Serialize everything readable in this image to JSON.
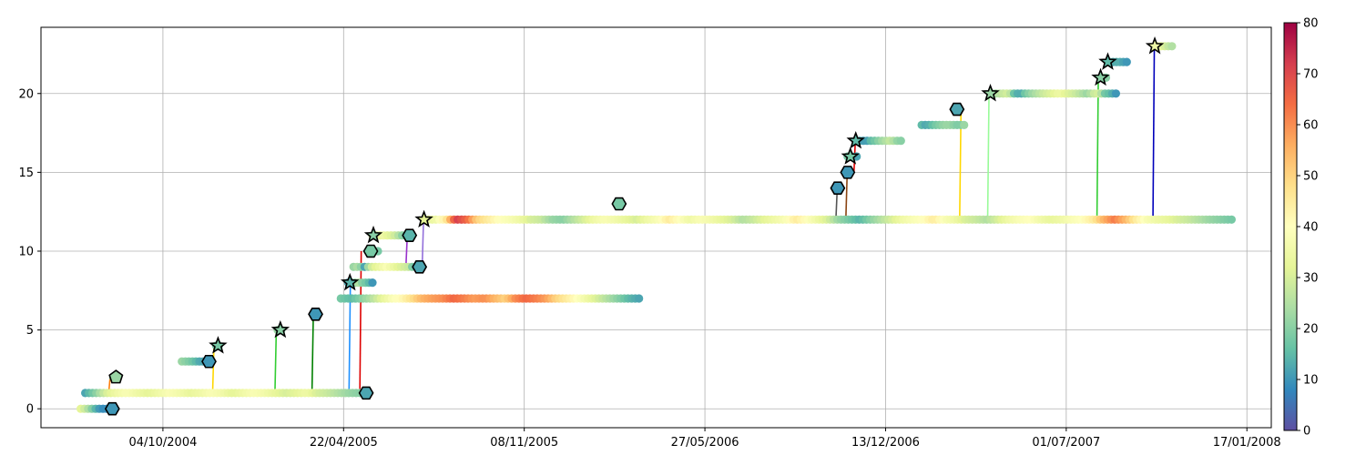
{
  "chart_data": {
    "type": "scatter",
    "title": "",
    "xlabel": "",
    "ylabel": "",
    "x_axis": {
      "kind": "date",
      "range": [
        "2004-05-22",
        "2008-02-13"
      ],
      "ticks": [
        {
          "date": "2004-10-04",
          "label": "04/10/2004"
        },
        {
          "date": "2005-04-22",
          "label": "22/04/2005"
        },
        {
          "date": "2005-11-08",
          "label": "08/11/2005"
        },
        {
          "date": "2006-05-27",
          "label": "27/05/2006"
        },
        {
          "date": "2006-12-13",
          "label": "13/12/2006"
        },
        {
          "date": "2007-07-01",
          "label": "01/07/2007"
        },
        {
          "date": "2008-01-17",
          "label": "17/01/2008"
        }
      ]
    },
    "y_axis": {
      "range": [
        -1.2,
        24.2
      ],
      "ticks": [
        0,
        5,
        10,
        15,
        20
      ],
      "tick_labels": [
        "0",
        "5",
        "10",
        "15",
        "20"
      ]
    },
    "grid": true,
    "colorbar": {
      "colormap": "Spectral_r",
      "range": [
        0,
        80
      ],
      "ticks": [
        0,
        10,
        20,
        30,
        40,
        50,
        60,
        70,
        80
      ],
      "tick_labels": [
        "0",
        "10",
        "20",
        "30",
        "40",
        "50",
        "60",
        "70",
        "80"
      ]
    },
    "tracks": [
      {
        "y": 0,
        "start": "2004-07-05",
        "end": "2004-08-11",
        "values": [
          32,
          28,
          22,
          15,
          10,
          8,
          10,
          12
        ]
      },
      {
        "y": 1,
        "start": "2004-07-10",
        "end": "2005-05-10",
        "values": [
          12,
          20,
          30,
          35,
          38,
          35,
          32,
          35,
          38,
          36,
          33,
          35,
          38,
          36,
          32,
          35,
          38,
          36,
          33,
          30,
          32,
          35,
          30,
          28,
          25,
          22,
          20
        ]
      },
      {
        "y": 2,
        "start": "2004-08-10",
        "end": "2004-08-13",
        "values": [
          22,
          20
        ]
      },
      {
        "y": 3,
        "start": "2004-10-25",
        "end": "2004-11-25",
        "values": [
          22,
          20,
          18,
          15,
          12,
          12,
          10
        ]
      },
      {
        "y": 4,
        "start": "2004-12-02",
        "end": "2004-12-05",
        "values": [
          18
        ]
      },
      {
        "y": 5,
        "start": "2005-02-08",
        "end": "2005-02-12",
        "values": [
          22,
          20
        ]
      },
      {
        "y": 6,
        "start": "2005-03-20",
        "end": "2005-03-24",
        "values": [
          12,
          10
        ]
      },
      {
        "y": 7,
        "start": "2005-04-19",
        "end": "2006-03-15",
        "values": [
          18,
          15,
          20,
          25,
          32,
          38,
          42,
          48,
          55,
          58,
          60,
          65,
          62,
          58,
          60,
          55,
          50,
          60,
          65,
          62,
          58,
          50,
          45,
          40,
          35,
          30,
          25,
          20,
          15,
          12
        ]
      },
      {
        "y": 8,
        "start": "2005-04-27",
        "end": "2005-05-24",
        "values": [
          12,
          15,
          22,
          25,
          20,
          18,
          15,
          10
        ]
      },
      {
        "y": 9,
        "start": "2005-05-03",
        "end": "2005-07-15",
        "values": [
          22,
          25,
          12,
          28,
          32,
          35,
          38,
          35,
          32,
          30,
          28,
          15,
          12
        ]
      },
      {
        "y": 10,
        "start": "2005-05-20",
        "end": "2005-05-30",
        "values": [
          25,
          20,
          18
        ]
      },
      {
        "y": 11,
        "start": "2005-05-24",
        "end": "2005-07-04",
        "values": [
          28,
          32,
          35,
          32,
          30,
          25,
          18,
          15
        ]
      },
      {
        "y": 12,
        "start": "2005-07-21",
        "end": "2007-12-31",
        "values": [
          32,
          35,
          45,
          72,
          65,
          50,
          45,
          40,
          38,
          35,
          30,
          28,
          22,
          20,
          25,
          30,
          35,
          38,
          36,
          33,
          30,
          35,
          38,
          45,
          40,
          35,
          38,
          36,
          33,
          30,
          25,
          28,
          32,
          35,
          38,
          45,
          40,
          35,
          30,
          22,
          18,
          14,
          20,
          25,
          30,
          35,
          38,
          40,
          45,
          38,
          35,
          30,
          28,
          25,
          30,
          35,
          38,
          40,
          36,
          33,
          35,
          38,
          40,
          45,
          55,
          62,
          55,
          45,
          38,
          35,
          33,
          30,
          28,
          25,
          22,
          20,
          18
        ]
      },
      {
        "y": 13,
        "start": "2006-02-20",
        "end": "2006-02-23",
        "values": [
          18
        ]
      },
      {
        "y": 14,
        "start": "2006-10-20",
        "end": "2006-10-23",
        "values": [
          10
        ]
      },
      {
        "y": 15,
        "start": "2006-10-30",
        "end": "2006-11-02",
        "values": [
          10
        ]
      },
      {
        "y": 16,
        "start": "2006-11-01",
        "end": "2006-11-11",
        "values": [
          18,
          15,
          12
        ]
      },
      {
        "y": 17,
        "start": "2006-11-10",
        "end": "2006-12-30",
        "values": [
          15,
          12,
          10,
          15,
          18,
          22,
          25,
          28,
          22,
          20
        ]
      },
      {
        "y": 18,
        "start": "2007-01-22",
        "end": "2007-03-10",
        "values": [
          15,
          12,
          15,
          18,
          20,
          22,
          22,
          20,
          18,
          22
        ]
      },
      {
        "y": 19,
        "start": "2007-03-01",
        "end": "2007-03-04",
        "values": [
          12
        ]
      },
      {
        "y": 20,
        "start": "2007-04-10",
        "end": "2007-08-25",
        "values": [
          22,
          25,
          28,
          30,
          15,
          12,
          18,
          22,
          25,
          28,
          30,
          32,
          35,
          32,
          30,
          28,
          25,
          22,
          28,
          30,
          18,
          15,
          10
        ]
      },
      {
        "y": 21,
        "start": "2007-08-09",
        "end": "2007-08-14",
        "values": [
          25,
          20
        ]
      },
      {
        "y": 22,
        "start": "2007-08-18",
        "end": "2007-09-06",
        "values": [
          15,
          12,
          14,
          12,
          10
        ]
      },
      {
        "y": 23,
        "start": "2007-10-10",
        "end": "2007-10-26",
        "values": [
          35,
          32,
          28,
          25
        ]
      }
    ],
    "links": [
      {
        "x": "2004-08-05",
        "from": 1,
        "to": 2,
        "color": "#ff7f0e"
      },
      {
        "x": "2004-11-28",
        "from": 1,
        "to": 4,
        "color": "#ffd700"
      },
      {
        "x": "2005-02-05",
        "from": 1,
        "to": 5,
        "color": "#32cd32"
      },
      {
        "x": "2005-03-18",
        "from": 1,
        "to": 6,
        "color": "#008000"
      },
      {
        "x": "2005-04-28",
        "from": 1,
        "to": 8,
        "color": "#1e90ff"
      },
      {
        "x": "2005-05-10",
        "from": 1,
        "to": 10,
        "color": "#dd0000"
      },
      {
        "x": "2005-06-30",
        "from": 9,
        "to": 11,
        "color": "#9932cc"
      },
      {
        "x": "2005-07-18",
        "from": 9,
        "to": 12,
        "color": "#9370db"
      },
      {
        "x": "2006-10-19",
        "from": 12,
        "to": 14,
        "color": "#555555"
      },
      {
        "x": "2006-10-30",
        "from": 12,
        "to": 15,
        "color": "#8b4513"
      },
      {
        "x": "2006-11-08",
        "from": 15,
        "to": 17,
        "color": "#dd0000"
      },
      {
        "x": "2007-03-05",
        "from": 12,
        "to": 19,
        "color": "#ffd700"
      },
      {
        "x": "2007-04-05",
        "from": 12,
        "to": 20,
        "color": "#98fb98"
      },
      {
        "x": "2007-08-04",
        "from": 12,
        "to": 21,
        "color": "#32cd32"
      },
      {
        "x": "2007-10-05",
        "from": 12,
        "to": 23,
        "color": "#0000bb"
      }
    ],
    "markers": [
      {
        "date": "2004-08-09",
        "y": 0,
        "shape": "hexagon",
        "value": 10
      },
      {
        "date": "2004-08-13",
        "y": 2,
        "shape": "pentagon",
        "value": 22
      },
      {
        "date": "2004-11-24",
        "y": 3,
        "shape": "hexagon",
        "value": 10
      },
      {
        "date": "2004-12-04",
        "y": 4,
        "shape": "star",
        "value": 18
      },
      {
        "date": "2005-02-11",
        "y": 5,
        "shape": "star",
        "value": 20
      },
      {
        "date": "2005-03-22",
        "y": 6,
        "shape": "hexagon",
        "value": 10
      },
      {
        "date": "2005-04-29",
        "y": 8,
        "shape": "star",
        "value": 14
      },
      {
        "date": "2005-05-17",
        "y": 1,
        "shape": "hexagon",
        "value": 12
      },
      {
        "date": "2005-05-22",
        "y": 10,
        "shape": "hexagon",
        "value": 18
      },
      {
        "date": "2005-05-25",
        "y": 11,
        "shape": "star",
        "value": 20
      },
      {
        "date": "2005-07-04",
        "y": 11,
        "shape": "hexagon",
        "value": 14
      },
      {
        "date": "2005-07-15",
        "y": 9,
        "shape": "hexagon",
        "value": 12
      },
      {
        "date": "2005-07-20",
        "y": 12,
        "shape": "star",
        "value": 32
      },
      {
        "date": "2006-02-21",
        "y": 13,
        "shape": "hexagon",
        "value": 18
      },
      {
        "date": "2006-10-21",
        "y": 14,
        "shape": "hexagon",
        "value": 10
      },
      {
        "date": "2006-11-01",
        "y": 15,
        "shape": "hexagon",
        "value": 10
      },
      {
        "date": "2006-11-04",
        "y": 16,
        "shape": "star",
        "value": 18
      },
      {
        "date": "2006-11-10",
        "y": 17,
        "shape": "star",
        "value": 15
      },
      {
        "date": "2007-03-02",
        "y": 19,
        "shape": "hexagon",
        "value": 12
      },
      {
        "date": "2007-04-08",
        "y": 20,
        "shape": "star",
        "value": 22
      },
      {
        "date": "2007-08-08",
        "y": 21,
        "shape": "star",
        "value": 20
      },
      {
        "date": "2007-08-16",
        "y": 22,
        "shape": "star",
        "value": 15
      },
      {
        "date": "2007-10-07",
        "y": 23,
        "shape": "star",
        "value": 35
      }
    ]
  }
}
